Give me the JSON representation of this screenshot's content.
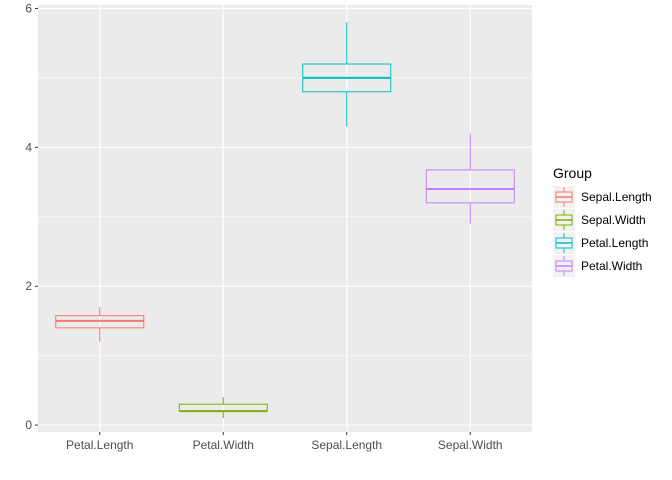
{
  "chart_data": {
    "type": "boxplot",
    "title": "",
    "xlabel": "",
    "ylabel": "",
    "categories": [
      "Petal.Length",
      "Petal.Width",
      "Sepal.Length",
      "Sepal.Width"
    ],
    "ylim": [
      -0.1,
      6.05
    ],
    "yticks": [
      0,
      2,
      4,
      6
    ],
    "grid": true,
    "legend": {
      "title": "Group",
      "position": "right",
      "entries": [
        "Sepal.Length",
        "Sepal.Width",
        "Petal.Length",
        "Petal.Width"
      ]
    },
    "boxes": [
      {
        "category": "Petal.Length",
        "group": "Sepal.Length",
        "min": 1.2,
        "q1": 1.4,
        "median": 1.5,
        "q3": 1.575,
        "max": 1.7,
        "color": "#F8766D"
      },
      {
        "category": "Petal.Width",
        "group": "Sepal.Width",
        "min": 0.1,
        "q1": 0.2,
        "median": 0.2,
        "q3": 0.3,
        "max": 0.4,
        "color": "#7CAE00"
      },
      {
        "category": "Sepal.Length",
        "group": "Petal.Length",
        "min": 4.3,
        "q1": 4.8,
        "median": 5.0,
        "q3": 5.2,
        "max": 5.8,
        "color": "#00BFC4"
      },
      {
        "category": "Sepal.Width",
        "group": "Petal.Width",
        "min": 2.9,
        "q1": 3.2,
        "median": 3.4,
        "q3": 3.675,
        "max": 4.2,
        "color": "#C77CFF"
      }
    ]
  }
}
